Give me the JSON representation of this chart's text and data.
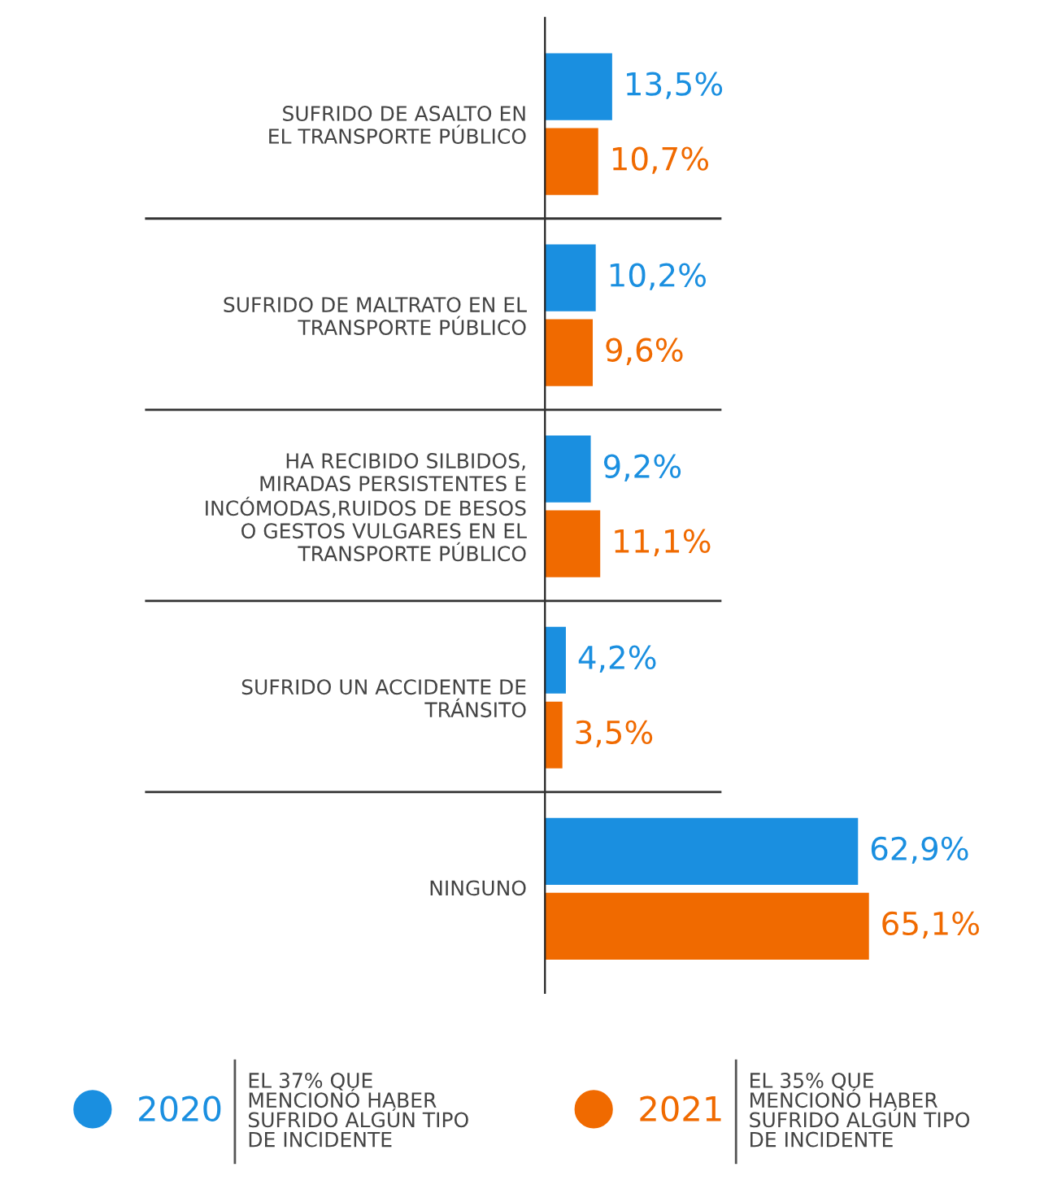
{
  "chart_data": {
    "type": "bar",
    "orientation": "horizontal",
    "categories": [
      "SUFRIDO DE ASALTO EN\nEL TRANSPORTE PÚBLICO",
      "SUFRIDO DE MALTRATO EN EL\nTRANSPORTE PÚBLICO",
      "HA RECIBIDO SILBIDOS,\nMIRADAS PERSISTENTES E\nINCÓMODAS,RUIDOS DE BESOS\nO GESTOS VULGARES EN EL\nTRANSPORTE PÚBLICO",
      "SUFRIDO UN ACCIDENTE DE\nTRÁNSITO",
      "NINGUNO"
    ],
    "series": [
      {
        "name": "2020",
        "color": "#1a8fe0",
        "values": [
          13.5,
          10.2,
          9.2,
          4.2,
          62.9
        ],
        "value_labels": [
          "13,5%",
          "10,2%",
          "9,2%",
          "4,2%",
          "62,9%"
        ]
      },
      {
        "name": "2021",
        "color": "#f06a00",
        "values": [
          10.7,
          9.6,
          11.1,
          3.5,
          65.1
        ],
        "value_labels": [
          "10,7%",
          "9,6%",
          "11,1%",
          "3,5%",
          "65,1%"
        ]
      }
    ],
    "legend": "bottom",
    "grid": false,
    "annotations": [
      "EL 37% QUE\nMENCIONÓ HABER\nSUFRIDO ALGÚN TIPO\nDE INCIDENTE",
      "EL 35% QUE\nMENCIONÓ HABER\nSUFRIDO ALGÚN TIPO\nDE INCIDENTE"
    ]
  }
}
